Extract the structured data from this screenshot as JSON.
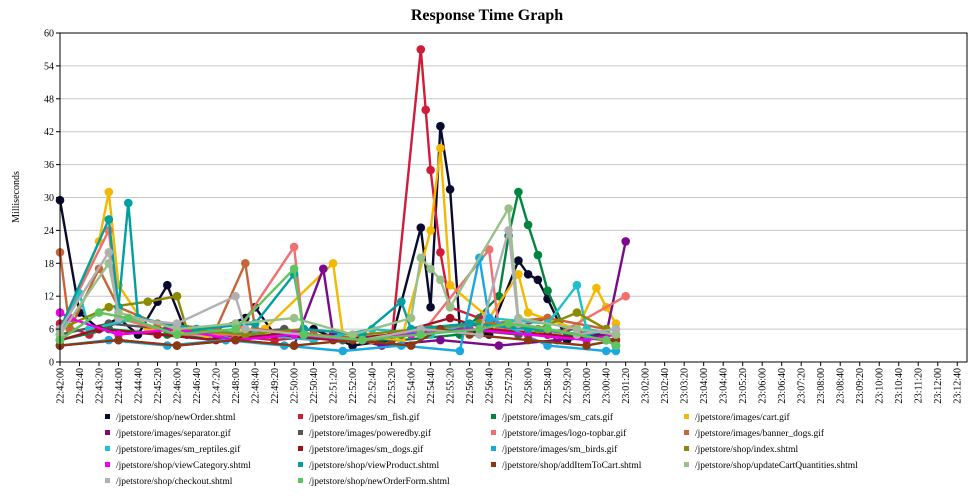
{
  "chart_data": {
    "type": "line",
    "title": "Response Time Graph",
    "xlabel": "",
    "ylabel": "Milliseconds",
    "ylim": [
      0,
      60
    ],
    "yticks": [
      0,
      6,
      12,
      18,
      24,
      30,
      36,
      42,
      48,
      54,
      60
    ],
    "grid": true,
    "legend_position": "bottom",
    "x_start": "22:42:00",
    "x_end": "23:13:00",
    "x_tick_step_seconds": 40,
    "series": [
      {
        "name": "/jpetstore/shop/newOrder.shtml",
        "color": "#0a0a2e",
        "points": [
          [
            "22:42:00",
            29.5
          ],
          [
            "22:42:40",
            9
          ],
          [
            "22:43:20",
            6
          ],
          [
            "22:44:00",
            8
          ],
          [
            "22:44:40",
            5
          ],
          [
            "22:45:20",
            11
          ],
          [
            "22:45:40",
            14
          ],
          [
            "22:46:20",
            5
          ],
          [
            "22:47:20",
            6
          ],
          [
            "22:48:20",
            8
          ],
          [
            "22:48:40",
            10
          ],
          [
            "22:49:20",
            5
          ],
          [
            "22:50:40",
            6
          ],
          [
            "22:52:00",
            3
          ],
          [
            "22:53:20",
            4
          ],
          [
            "22:54:20",
            24.5
          ],
          [
            "22:54:40",
            10
          ],
          [
            "22:55:00",
            43
          ],
          [
            "22:55:20",
            31.5
          ],
          [
            "22:55:40",
            6
          ],
          [
            "22:56:40",
            5
          ],
          [
            "22:57:40",
            18.5
          ],
          [
            "22:58:00",
            16
          ],
          [
            "22:58:20",
            15
          ],
          [
            "22:58:40",
            11.5
          ],
          [
            "22:59:20",
            4
          ],
          [
            "23:00:20",
            5
          ],
          [
            "23:01:00",
            3
          ]
        ]
      },
      {
        "name": "/jpetstore/images/sm_fish.gif",
        "color": "#d01c3a",
        "points": [
          [
            "22:42:00",
            7
          ],
          [
            "22:43:00",
            5
          ],
          [
            "22:44:20",
            8
          ],
          [
            "22:45:20",
            6
          ],
          [
            "22:47:20",
            5
          ],
          [
            "22:49:20",
            4
          ],
          [
            "22:51:20",
            5
          ],
          [
            "22:53:20",
            4
          ],
          [
            "22:54:20",
            57
          ],
          [
            "22:54:30",
            46
          ],
          [
            "22:54:40",
            35
          ],
          [
            "22:55:00",
            20
          ],
          [
            "22:55:20",
            10
          ],
          [
            "22:56:20",
            8
          ],
          [
            "22:57:20",
            6
          ],
          [
            "22:58:40",
            8
          ],
          [
            "23:00:00",
            5
          ],
          [
            "23:01:00",
            4
          ]
        ]
      },
      {
        "name": "/jpetstore/images/sm_cats.gif",
        "color": "#00853e",
        "points": [
          [
            "22:42:00",
            4
          ],
          [
            "22:43:40",
            6
          ],
          [
            "22:45:40",
            5
          ],
          [
            "22:47:40",
            4
          ],
          [
            "22:49:40",
            5
          ],
          [
            "22:51:40",
            4
          ],
          [
            "22:53:40",
            4
          ],
          [
            "22:55:40",
            5
          ],
          [
            "22:57:00",
            12
          ],
          [
            "22:57:20",
            23
          ],
          [
            "22:57:40",
            31
          ],
          [
            "22:58:00",
            25
          ],
          [
            "22:58:20",
            19.5
          ],
          [
            "22:58:40",
            13
          ],
          [
            "22:59:20",
            5
          ],
          [
            "23:00:40",
            4
          ],
          [
            "23:01:00",
            3
          ]
        ]
      },
      {
        "name": "/jpetstore/images/cart.gif",
        "color": "#f5b800",
        "points": [
          [
            "22:42:00",
            5
          ],
          [
            "22:43:20",
            22
          ],
          [
            "22:43:40",
            31
          ],
          [
            "22:44:00",
            14
          ],
          [
            "22:45:00",
            6
          ],
          [
            "22:47:00",
            5
          ],
          [
            "22:49:00",
            6
          ],
          [
            "22:51:20",
            18
          ],
          [
            "22:51:40",
            5
          ],
          [
            "22:53:40",
            4
          ],
          [
            "22:54:40",
            24
          ],
          [
            "22:55:00",
            39
          ],
          [
            "22:55:20",
            14
          ],
          [
            "22:56:40",
            8
          ],
          [
            "22:57:40",
            16
          ],
          [
            "22:58:00",
            9
          ],
          [
            "22:59:40",
            6
          ],
          [
            "23:00:20",
            13.5
          ],
          [
            "23:00:40",
            10
          ],
          [
            "23:01:00",
            7
          ]
        ]
      },
      {
        "name": "/jpetstore/images/separator.gif",
        "color": "#7a0a8a",
        "points": [
          [
            "22:42:00",
            3
          ],
          [
            "22:44:00",
            4
          ],
          [
            "22:46:00",
            3
          ],
          [
            "22:48:00",
            4
          ],
          [
            "22:50:00",
            3
          ],
          [
            "22:51:00",
            17
          ],
          [
            "22:51:20",
            5
          ],
          [
            "22:53:00",
            3
          ],
          [
            "22:55:00",
            4
          ],
          [
            "22:57:00",
            3
          ],
          [
            "22:59:00",
            4
          ],
          [
            "23:00:40",
            5
          ],
          [
            "23:01:20",
            22
          ]
        ]
      },
      {
        "name": "/jpetstore/images/poweredby.gif",
        "color": "#555555",
        "points": [
          [
            "22:42:00",
            5
          ],
          [
            "22:43:40",
            7
          ],
          [
            "22:45:40",
            6
          ],
          [
            "22:47:40",
            5
          ],
          [
            "22:49:40",
            6
          ],
          [
            "22:51:40",
            4
          ],
          [
            "22:53:40",
            5
          ],
          [
            "22:55:40",
            6
          ],
          [
            "22:57:40",
            5
          ],
          [
            "22:59:40",
            6
          ],
          [
            "23:01:00",
            5
          ]
        ]
      },
      {
        "name": "/jpetstore/images/logo-topbar.gif",
        "color": "#f07070",
        "points": [
          [
            "22:42:00",
            6
          ],
          [
            "22:43:40",
            24
          ],
          [
            "22:44:00",
            8
          ],
          [
            "22:46:00",
            5
          ],
          [
            "22:48:00",
            5
          ],
          [
            "22:50:00",
            21
          ],
          [
            "22:50:20",
            5
          ],
          [
            "22:52:20",
            4
          ],
          [
            "22:54:20",
            5
          ],
          [
            "22:56:40",
            20.5
          ],
          [
            "22:57:00",
            6
          ],
          [
            "22:59:00",
            5
          ],
          [
            "23:01:20",
            12
          ]
        ]
      },
      {
        "name": "/jpetstore/images/banner_dogs.gif",
        "color": "#c8643a",
        "points": [
          [
            "22:42:00",
            20
          ],
          [
            "22:42:20",
            6
          ],
          [
            "22:43:20",
            17
          ],
          [
            "22:44:00",
            10
          ],
          [
            "22:45:20",
            7
          ],
          [
            "22:47:20",
            6
          ],
          [
            "22:48:20",
            18
          ],
          [
            "22:48:40",
            6
          ],
          [
            "22:50:40",
            5
          ],
          [
            "22:52:40",
            4
          ],
          [
            "22:54:40",
            6
          ],
          [
            "22:56:40",
            7
          ],
          [
            "22:58:40",
            8
          ],
          [
            "23:00:40",
            6
          ]
        ]
      },
      {
        "name": "/jpetstore/images/sm_reptiles.gif",
        "color": "#20c0c8",
        "points": [
          [
            "22:42:00",
            5
          ],
          [
            "22:42:40",
            12.5
          ],
          [
            "22:43:00",
            6
          ],
          [
            "22:44:40",
            8
          ],
          [
            "22:46:40",
            6
          ],
          [
            "22:48:40",
            5
          ],
          [
            "22:50:40",
            4
          ],
          [
            "22:52:40",
            6
          ],
          [
            "22:54:40",
            5
          ],
          [
            "22:56:40",
            8
          ],
          [
            "22:58:40",
            7
          ],
          [
            "22:59:40",
            14
          ],
          [
            "23:00:00",
            6
          ],
          [
            "23:01:00",
            5
          ]
        ]
      },
      {
        "name": "/jpetstore/images/sm_dogs.gif",
        "color": "#a01020",
        "points": [
          [
            "22:42:00",
            4
          ],
          [
            "22:43:20",
            6
          ],
          [
            "22:45:20",
            5
          ],
          [
            "22:47:20",
            4
          ],
          [
            "22:49:20",
            5
          ],
          [
            "22:51:20",
            4
          ],
          [
            "22:53:20",
            5
          ],
          [
            "22:55:20",
            8
          ],
          [
            "22:56:40",
            6
          ],
          [
            "22:58:40",
            5
          ],
          [
            "23:00:40",
            4
          ]
        ]
      },
      {
        "name": "/jpetstore/images/sm_birds.gif",
        "color": "#1aa8e0",
        "points": [
          [
            "22:42:00",
            3
          ],
          [
            "22:43:40",
            4
          ],
          [
            "22:45:40",
            3
          ],
          [
            "22:47:40",
            4
          ],
          [
            "22:49:40",
            3
          ],
          [
            "22:51:40",
            2
          ],
          [
            "22:53:40",
            3
          ],
          [
            "22:55:40",
            2
          ],
          [
            "22:56:20",
            19
          ],
          [
            "22:56:40",
            8
          ],
          [
            "22:58:40",
            3
          ],
          [
            "23:00:40",
            2
          ],
          [
            "23:01:00",
            2
          ]
        ]
      },
      {
        "name": "/jpetstore/shop/index.shtml",
        "color": "#8a8a00",
        "points": [
          [
            "22:42:00",
            6
          ],
          [
            "22:43:40",
            10
          ],
          [
            "22:45:00",
            11
          ],
          [
            "22:46:00",
            12
          ],
          [
            "22:46:20",
            6
          ],
          [
            "22:48:20",
            5
          ],
          [
            "22:50:20",
            6
          ],
          [
            "22:52:20",
            5
          ],
          [
            "22:54:20",
            6
          ],
          [
            "22:56:20",
            7
          ],
          [
            "22:58:20",
            6
          ],
          [
            "22:59:40",
            9
          ],
          [
            "23:00:40",
            6
          ]
        ]
      },
      {
        "name": "/jpetstore/shop/viewCategory.shtml",
        "color": "#ee00ee",
        "points": [
          [
            "22:42:00",
            9
          ],
          [
            "22:42:20",
            8
          ],
          [
            "22:44:00",
            5
          ],
          [
            "22:46:00",
            6
          ],
          [
            "22:48:00",
            4
          ],
          [
            "22:50:00",
            5
          ],
          [
            "22:52:00",
            4
          ],
          [
            "22:54:00",
            5
          ],
          [
            "22:56:00",
            6
          ],
          [
            "22:58:00",
            5
          ],
          [
            "23:00:00",
            4
          ],
          [
            "23:01:00",
            5
          ]
        ]
      },
      {
        "name": "/jpetstore/shop/viewProduct.shtml",
        "color": "#00a0a0",
        "points": [
          [
            "22:42:00",
            6
          ],
          [
            "22:43:40",
            26
          ],
          [
            "22:44:00",
            10
          ],
          [
            "22:44:20",
            29
          ],
          [
            "22:44:40",
            8
          ],
          [
            "22:46:40",
            6
          ],
          [
            "22:48:40",
            7
          ],
          [
            "22:50:00",
            16
          ],
          [
            "22:50:20",
            6
          ],
          [
            "22:52:20",
            5
          ],
          [
            "22:53:40",
            11
          ],
          [
            "22:54:00",
            6
          ],
          [
            "22:56:00",
            7
          ],
          [
            "22:58:00",
            6
          ],
          [
            "23:00:00",
            5
          ],
          [
            "23:01:00",
            6
          ]
        ]
      },
      {
        "name": "/jpetstore/shop/addItemToCart.shtml",
        "color": "#8a3a10",
        "points": [
          [
            "22:42:00",
            3
          ],
          [
            "22:44:00",
            4
          ],
          [
            "22:46:00",
            3
          ],
          [
            "22:48:00",
            4
          ],
          [
            "22:50:00",
            3
          ],
          [
            "22:52:00",
            4
          ],
          [
            "22:54:00",
            3
          ],
          [
            "22:55:00",
            6
          ],
          [
            "22:56:00",
            5
          ],
          [
            "22:58:00",
            4
          ],
          [
            "23:00:00",
            3
          ],
          [
            "23:01:00",
            4
          ]
        ]
      },
      {
        "name": "/jpetstore/shop/updateCartQuantities.shtml",
        "color": "#98c088",
        "points": [
          [
            "22:42:00",
            5
          ],
          [
            "22:43:40",
            18
          ],
          [
            "22:44:00",
            9
          ],
          [
            "22:46:00",
            6
          ],
          [
            "22:48:00",
            7
          ],
          [
            "22:50:00",
            8
          ],
          [
            "22:52:00",
            5
          ],
          [
            "22:54:00",
            8
          ],
          [
            "22:54:20",
            19
          ],
          [
            "22:54:40",
            17
          ],
          [
            "22:55:00",
            15
          ],
          [
            "22:55:20",
            10
          ],
          [
            "22:57:20",
            28
          ],
          [
            "22:57:40",
            8
          ],
          [
            "22:59:40",
            6
          ],
          [
            "23:01:00",
            5
          ]
        ]
      },
      {
        "name": "/jpetstore/shop/checkout.shtml",
        "color": "#b0b0b0",
        "points": [
          [
            "22:42:00",
            6
          ],
          [
            "22:43:40",
            20
          ],
          [
            "22:44:00",
            8
          ],
          [
            "22:46:00",
            7
          ],
          [
            "22:48:00",
            12
          ],
          [
            "22:48:20",
            6
          ],
          [
            "22:50:20",
            5
          ],
          [
            "22:52:20",
            4
          ],
          [
            "22:54:20",
            6
          ],
          [
            "22:56:20",
            5
          ],
          [
            "22:57:20",
            24
          ],
          [
            "22:57:40",
            7
          ],
          [
            "22:59:40",
            5
          ],
          [
            "23:01:00",
            6
          ]
        ]
      },
      {
        "name": "/jpetstore/shop/newOrderForm.shtml",
        "color": "#5ec45e",
        "points": [
          [
            "22:42:00",
            4
          ],
          [
            "22:43:20",
            9
          ],
          [
            "22:44:20",
            8
          ],
          [
            "22:46:00",
            5
          ],
          [
            "22:48:00",
            6
          ],
          [
            "22:50:00",
            17
          ],
          [
            "22:50:20",
            5
          ],
          [
            "22:52:20",
            4
          ],
          [
            "22:54:20",
            5
          ],
          [
            "22:56:20",
            6
          ],
          [
            "22:57:20",
            7
          ],
          [
            "22:58:40",
            6
          ],
          [
            "23:00:40",
            4
          ],
          [
            "23:01:00",
            3
          ]
        ]
      }
    ]
  }
}
